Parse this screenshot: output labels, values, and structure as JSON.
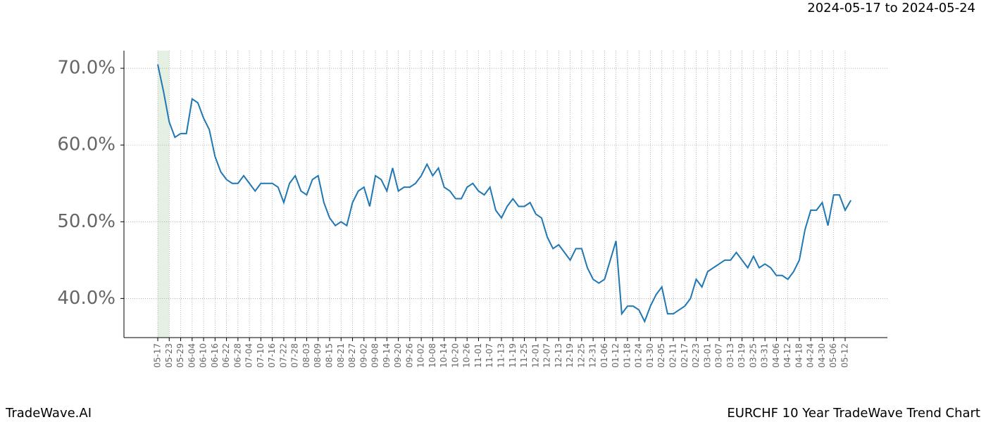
{
  "chart_data": {
    "type": "line",
    "title": "EURCHF 10 Year TradeWave Trend Chart",
    "subtitle": "2024-05-17 to 2024-05-24",
    "brand": "TradeWave.AI",
    "x": [
      "05-17",
      null,
      "05-23",
      null,
      "05-29",
      null,
      "06-04",
      null,
      "06-10",
      null,
      "06-16",
      null,
      "06-22",
      null,
      "06-28",
      null,
      "07-04",
      null,
      "07-10",
      null,
      "07-16",
      null,
      "07-22",
      null,
      "07-28",
      null,
      "08-03",
      null,
      "08-09",
      null,
      "08-15",
      null,
      "08-21",
      null,
      "08-27",
      null,
      "09-02",
      null,
      "09-08",
      null,
      "09-14",
      null,
      "09-20",
      null,
      "09-26",
      null,
      "10-02",
      null,
      "10-08",
      null,
      "10-14",
      null,
      "10-20",
      null,
      "10-26",
      null,
      "11-01",
      null,
      "11-07",
      null,
      "11-13",
      null,
      "11-19",
      null,
      "11-25",
      null,
      "12-01",
      null,
      "12-07",
      null,
      "12-13",
      null,
      "12-19",
      null,
      "12-25",
      null,
      "12-31",
      null,
      "01-06",
      null,
      "01-12",
      null,
      "01-18",
      null,
      "01-24",
      null,
      "01-30",
      null,
      "02-05",
      null,
      "02-11",
      null,
      "02-17",
      null,
      "02-23",
      null,
      "03-01",
      null,
      "03-07",
      null,
      "03-13",
      null,
      "03-19",
      null,
      "03-25",
      null,
      "03-31",
      null,
      "04-06",
      null,
      "04-12",
      null,
      "04-18",
      null,
      "04-24",
      null,
      "04-30",
      null,
      "05-06",
      null,
      "05-12",
      null
    ],
    "series": [
      {
        "name": "EURCHF",
        "color": "#1f77b4",
        "values": [
          70.5,
          67.0,
          63.0,
          61.0,
          61.5,
          61.5,
          66.0,
          65.5,
          63.5,
          62.0,
          58.5,
          56.5,
          55.5,
          55.0,
          55.0,
          56.0,
          55.0,
          54.0,
          55.0,
          55.0,
          55.0,
          54.5,
          52.5,
          55.0,
          56.0,
          54.0,
          53.5,
          55.5,
          56.0,
          52.5,
          50.5,
          49.5,
          50.0,
          49.5,
          52.5,
          54.0,
          54.5,
          52.0,
          56.0,
          55.5,
          54.0,
          57.0,
          54.0,
          54.5,
          54.5,
          55.0,
          56.0,
          57.5,
          56.0,
          57.0,
          54.5,
          54.0,
          53.0,
          53.0,
          54.5,
          55.0,
          54.0,
          53.5,
          54.5,
          51.5,
          50.5,
          52.0,
          53.0,
          52.0,
          52.0,
          52.5,
          51.0,
          50.5,
          48.0,
          46.5,
          47.0,
          46.0,
          45.0,
          46.5,
          46.5,
          44.0,
          42.5,
          42.0,
          42.5,
          45.0,
          47.5,
          38.0,
          39.0,
          39.0,
          38.5,
          37.0,
          39.0,
          40.5,
          41.5,
          38.0,
          38.0,
          38.5,
          39.0,
          40.0,
          42.5,
          41.5,
          43.5,
          44.0,
          44.5,
          45.0,
          45.0,
          46.0,
          45.0,
          44.0,
          45.5,
          44.0,
          44.5,
          44.0,
          43.0,
          43.0,
          42.5,
          43.5,
          45.0,
          49.0,
          51.5,
          51.5,
          52.5,
          49.5,
          53.5,
          53.5,
          51.5,
          52.8
        ]
      }
    ],
    "ylim": [
      34.9,
      72.3
    ],
    "yticks": [
      {
        "value": 40,
        "label": "40.0%"
      },
      {
        "value": 50,
        "label": "50.0%"
      },
      {
        "value": 60,
        "label": "60.0%"
      },
      {
        "value": 70,
        "label": "70.0%"
      }
    ],
    "grid": true
  }
}
